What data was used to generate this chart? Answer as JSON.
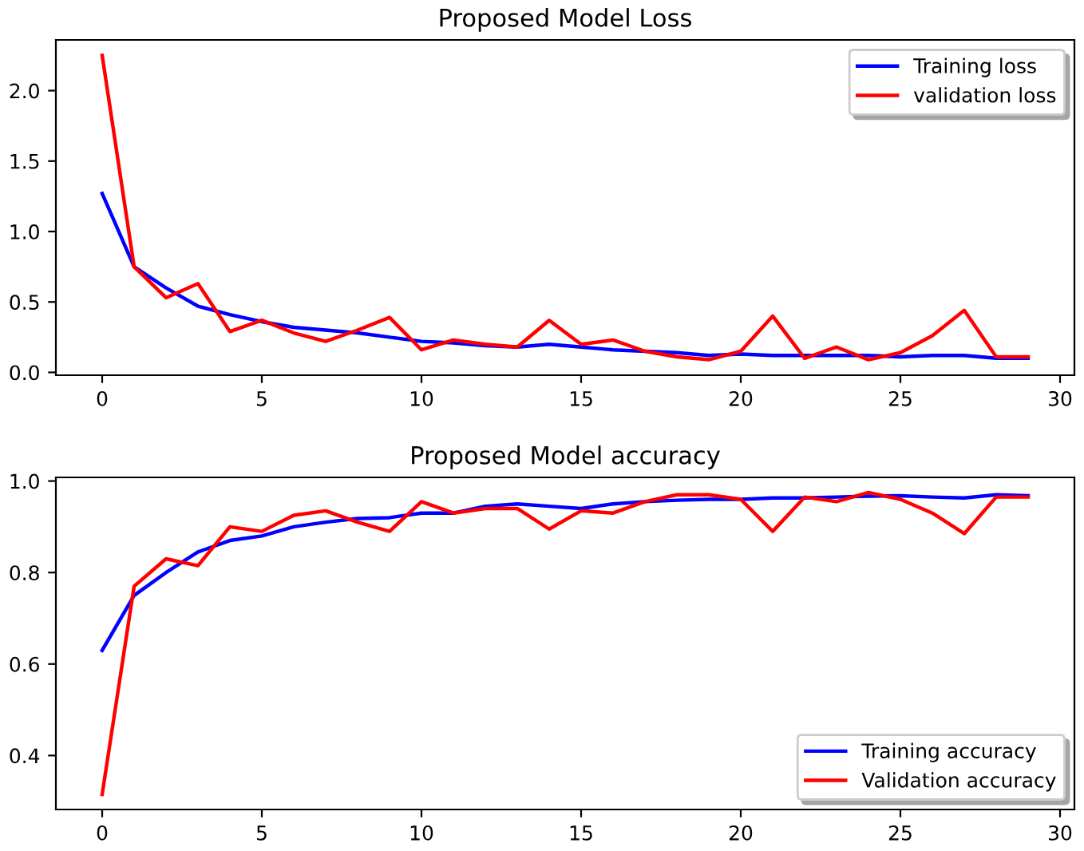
{
  "chart_data": [
    {
      "type": "line",
      "title": "Proposed Model Loss",
      "x": [
        0,
        1,
        2,
        3,
        4,
        5,
        6,
        7,
        8,
        9,
        10,
        11,
        12,
        13,
        14,
        15,
        16,
        17,
        18,
        19,
        20,
        21,
        22,
        23,
        24,
        25,
        26,
        27,
        28,
        29
      ],
      "series": [
        {
          "name": "Training loss",
          "color": "#0000ff",
          "values": [
            1.27,
            0.75,
            0.6,
            0.47,
            0.41,
            0.36,
            0.32,
            0.3,
            0.28,
            0.25,
            0.22,
            0.21,
            0.19,
            0.18,
            0.2,
            0.18,
            0.16,
            0.15,
            0.14,
            0.12,
            0.13,
            0.12,
            0.12,
            0.12,
            0.12,
            0.11,
            0.12,
            0.12,
            0.1,
            0.1
          ]
        },
        {
          "name": "validation loss",
          "color": "#ff0000",
          "values": [
            2.25,
            0.75,
            0.53,
            0.63,
            0.29,
            0.37,
            0.28,
            0.22,
            0.3,
            0.39,
            0.16,
            0.23,
            0.2,
            0.18,
            0.37,
            0.2,
            0.23,
            0.15,
            0.11,
            0.09,
            0.15,
            0.4,
            0.1,
            0.18,
            0.09,
            0.14,
            0.26,
            0.44,
            0.11,
            0.11
          ]
        }
      ],
      "xlim": [
        -1.45,
        30.45
      ],
      "ylim": [
        -0.02,
        2.36
      ],
      "xticks": [
        0,
        5,
        10,
        15,
        20,
        25,
        30
      ],
      "yticks": [
        {
          "value": 0,
          "label": "0.0"
        },
        0.5,
        {
          "value": 1,
          "label": "1.0"
        },
        1.5,
        {
          "value": 2,
          "label": "2.0"
        }
      ],
      "legend": "top right",
      "grid": false,
      "line_style": "solid"
    },
    {
      "type": "line",
      "title": "Proposed Model accuracy",
      "x": [
        0,
        1,
        2,
        3,
        4,
        5,
        6,
        7,
        8,
        9,
        10,
        11,
        12,
        13,
        14,
        15,
        16,
        17,
        18,
        19,
        20,
        21,
        22,
        23,
        24,
        25,
        26,
        27,
        28,
        29
      ],
      "series": [
        {
          "name": "Training accuracy",
          "color": "#0000ff",
          "values": [
            0.63,
            0.75,
            0.8,
            0.845,
            0.87,
            0.88,
            0.9,
            0.91,
            0.918,
            0.92,
            0.93,
            0.93,
            0.945,
            0.95,
            0.945,
            0.94,
            0.95,
            0.955,
            0.958,
            0.96,
            0.96,
            0.963,
            0.963,
            0.965,
            0.967,
            0.968,
            0.965,
            0.963,
            0.97,
            0.968
          ]
        },
        {
          "name": "Validation accuracy",
          "color": "#ff0000",
          "values": [
            0.315,
            0.77,
            0.83,
            0.815,
            0.9,
            0.89,
            0.925,
            0.935,
            0.91,
            0.89,
            0.955,
            0.93,
            0.94,
            0.94,
            0.895,
            0.935,
            0.93,
            0.955,
            0.97,
            0.97,
            0.96,
            0.89,
            0.965,
            0.955,
            0.975,
            0.96,
            0.93,
            0.885,
            0.965,
            0.965
          ]
        }
      ],
      "xlim": [
        -1.45,
        30.45
      ],
      "ylim": [
        0.282,
        1.008
      ],
      "xticks": [
        0,
        5,
        10,
        15,
        20,
        25,
        30
      ],
      "yticks": [
        0.4,
        0.6,
        0.8,
        {
          "value": 1,
          "label": "1.0"
        }
      ],
      "legend": "bottom right",
      "grid": false,
      "line_style": "solid"
    }
  ]
}
